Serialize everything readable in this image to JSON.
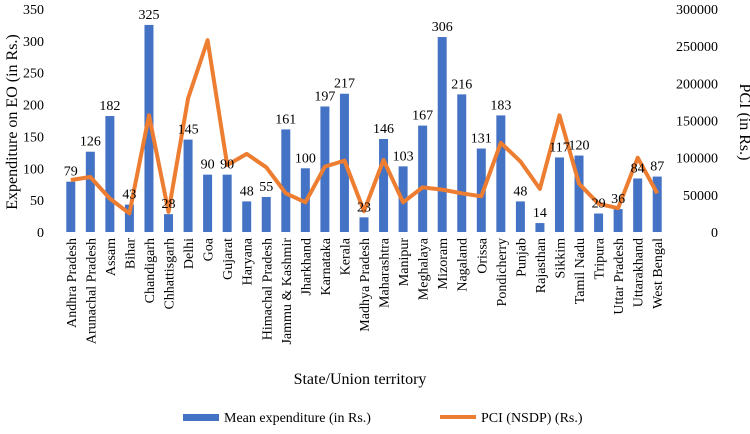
{
  "chart_data": {
    "type": "bar+line",
    "title": "",
    "xlabel": "State/Union territory",
    "ylabel_left": "Expenditure on EO (in Rs.)",
    "ylabel_right": "PCI (in Rs.)",
    "ylim_left": [
      0,
      350
    ],
    "ylim_right": [
      0,
      300000
    ],
    "yticks_left": [
      0,
      50,
      100,
      150,
      200,
      250,
      300,
      350
    ],
    "yticks_right": [
      0,
      50000,
      100000,
      150000,
      200000,
      250000,
      300000
    ],
    "categories": [
      "Andhra Pradesh",
      "Arunachal Pradesh",
      "Assam",
      "Bihar",
      "Chandigarh",
      "Chhattisgarh",
      "Delhi",
      "Goa",
      "Gujarat",
      "Haryana",
      "Himachal Pradesh",
      "Jammu & Kashmir",
      "Jharkhand",
      "Karnataka",
      "Kerala",
      "Madhya Pradesh",
      "Maharashtra",
      "Manipur",
      "Meghalaya",
      "Mizoram",
      "Nagaland",
      "Orissa",
      "Pondicherry",
      "Punjab",
      "Rajasthan",
      "Sikkim",
      "Tamil Nadu",
      "Tripura",
      "Uttar Pradesh",
      "Uttarakhand",
      "West Bengal"
    ],
    "series": [
      {
        "name": "Mean expenditure (in Rs.)",
        "type": "bar",
        "axis": "left",
        "color": "#4472C4",
        "values": [
          79,
          126,
          182,
          43,
          325,
          28,
          145,
          90,
          90,
          48,
          55,
          161,
          100,
          197,
          217,
          23,
          146,
          103,
          167,
          306,
          216,
          131,
          183,
          48,
          14,
          117,
          120,
          29,
          36,
          84,
          87
        ]
      },
      {
        "name": "PCI (NSDP) (Rs.)",
        "type": "line",
        "axis": "right",
        "color": "#ED7D31",
        "values": [
          70000,
          74000,
          45000,
          25000,
          157000,
          27000,
          180000,
          258000,
          90000,
          105000,
          87000,
          52000,
          40000,
          88000,
          96000,
          28000,
          97000,
          40000,
          60000,
          57000,
          52000,
          48000,
          120000,
          95000,
          58000,
          157000,
          65000,
          38000,
          32000,
          100000,
          52000
        ]
      }
    ],
    "legend": "bottom"
  }
}
